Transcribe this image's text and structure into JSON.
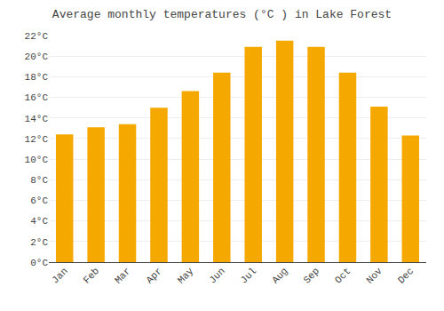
{
  "chart_data": {
    "type": "bar",
    "title": "Average monthly temperatures (°C ) in Lake Forest",
    "categories": [
      "Jan",
      "Feb",
      "Mar",
      "Apr",
      "May",
      "Jun",
      "Jul",
      "Aug",
      "Sep",
      "Oct",
      "Nov",
      "Dec"
    ],
    "values": [
      12.4,
      13.1,
      13.4,
      15.0,
      16.6,
      18.4,
      20.9,
      21.5,
      20.9,
      18.4,
      15.1,
      12.3
    ],
    "color": "#F5A800",
    "ylim": [
      0,
      22
    ],
    "yticks": [
      {
        "value": 0,
        "label": "0°C"
      },
      {
        "value": 2,
        "label": "2°C"
      },
      {
        "value": 4,
        "label": "4°C"
      },
      {
        "value": 6,
        "label": "6°C"
      },
      {
        "value": 8,
        "label": "8°C"
      },
      {
        "value": 10,
        "label": "10°C"
      },
      {
        "value": 12,
        "label": "12°C"
      },
      {
        "value": 14,
        "label": "14°C"
      },
      {
        "value": 16,
        "label": "16°C"
      },
      {
        "value": 18,
        "label": "18°C"
      },
      {
        "value": 20,
        "label": "20°C"
      },
      {
        "value": 22,
        "label": "22°C"
      }
    ],
    "grid": true
  }
}
